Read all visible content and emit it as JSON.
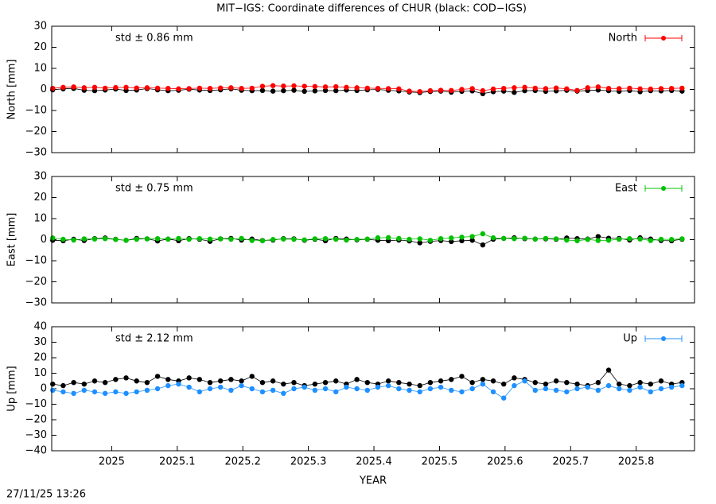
{
  "title": "MIT−IGS: Coordinate differences of CHUR (black: COD−IGS)",
  "footer": "27/11/25 13:26",
  "chart_data": [
    {
      "type": "scatter",
      "ylabel": "North [mm]",
      "annotation": "std ± 0.86 mm",
      "legend": "upper right",
      "x": [
        2024.91,
        2024.926,
        2024.942,
        2024.958,
        2024.974,
        2024.99,
        2025.006,
        2025.022,
        2025.038,
        2025.054,
        2025.07,
        2025.086,
        2025.102,
        2025.118,
        2025.134,
        2025.15,
        2025.166,
        2025.182,
        2025.198,
        2025.214,
        2025.23,
        2025.246,
        2025.262,
        2025.278,
        2025.294,
        2025.31,
        2025.326,
        2025.342,
        2025.358,
        2025.374,
        2025.39,
        2025.406,
        2025.422,
        2025.438,
        2025.454,
        2025.47,
        2025.486,
        2025.502,
        2025.518,
        2025.534,
        2025.55,
        2025.566,
        2025.582,
        2025.598,
        2025.614,
        2025.63,
        2025.646,
        2025.662,
        2025.678,
        2025.694,
        2025.71,
        2025.726,
        2025.742,
        2025.758,
        2025.774,
        2025.79,
        2025.806,
        2025.822,
        2025.838,
        2025.854,
        2025.87
      ],
      "xlim": [
        2024.9085,
        2025.889
      ],
      "xticks": [
        2025,
        2025.1,
        2025.2,
        2025.3,
        2025.4,
        2025.5,
        2025.6,
        2025.7,
        2025.8
      ],
      "ylim": [
        -30,
        30
      ],
      "yticks": [
        {
          "value": -30,
          "label": "−30"
        },
        {
          "value": -20,
          "label": "−20"
        },
        {
          "value": -10,
          "label": "−10"
        },
        0,
        10,
        20,
        30
      ],
      "series": [
        {
          "color": "#000000",
          "values": [
            -0.2,
            0.3,
            0.5,
            -0.4,
            -0.6,
            -0.3,
            0.2,
            -0.5,
            -0.3,
            0.4,
            -0.2,
            -0.6,
            -0.4,
            0.1,
            -0.3,
            -0.5,
            -0.2,
            0.3,
            -0.4,
            -0.6,
            -0.5,
            -0.8,
            -0.6,
            -0.4,
            -0.9,
            -0.7,
            -0.5,
            -0.6,
            -0.3,
            -0.5,
            -0.2,
            0,
            -0.4,
            -0.7,
            -1.2,
            -1.5,
            -1,
            -0.8,
            -1.3,
            -0.9,
            -0.7,
            -2,
            -1.1,
            -0.8,
            -1.4,
            -0.6,
            -0.5,
            -0.9,
            -0.7,
            -0.4,
            -0.8,
            -0.5,
            -0.3,
            -0.6,
            -0.9,
            -0.5,
            -1.1,
            -0.6,
            -0.7,
            -0.5,
            -0.8
          ]
        },
        {
          "name": "North",
          "color": "#ff0000",
          "values": [
            0.5,
            1,
            1.2,
            0.8,
            1,
            0.6,
            0.9,
            1,
            0.7,
            0.8,
            0.6,
            0.5,
            0.3,
            0.4,
            0.6,
            0.5,
            0.7,
            0.8,
            0.5,
            0.6,
            1.5,
            1.8,
            1.6,
            1.7,
            1.5,
            1.4,
            1.2,
            1.3,
            1,
            0.8,
            0.6,
            0.5,
            0.4,
            0.3,
            -0.8,
            -1,
            -0.6,
            -0.4,
            -0.5,
            0,
            0.4,
            -0.6,
            0.2,
            0.5,
            0.8,
            1,
            0.6,
            0.4,
            0.7,
            0.3,
            -0.5,
            0.8,
            1.2,
            0.5,
            0.4,
            0.6,
            0.3,
            0.2,
            0.4,
            0.5,
            0.6
          ]
        }
      ]
    },
    {
      "type": "scatter",
      "ylabel": "East [mm]",
      "annotation": "std ± 0.75 mm",
      "legend": "upper right",
      "x": [
        2024.91,
        2024.926,
        2024.942,
        2024.958,
        2024.974,
        2024.99,
        2025.006,
        2025.022,
        2025.038,
        2025.054,
        2025.07,
        2025.086,
        2025.102,
        2025.118,
        2025.134,
        2025.15,
        2025.166,
        2025.182,
        2025.198,
        2025.214,
        2025.23,
        2025.246,
        2025.262,
        2025.278,
        2025.294,
        2025.31,
        2025.326,
        2025.342,
        2025.358,
        2025.374,
        2025.39,
        2025.406,
        2025.422,
        2025.438,
        2025.454,
        2025.47,
        2025.486,
        2025.502,
        2025.518,
        2025.534,
        2025.55,
        2025.566,
        2025.582,
        2025.598,
        2025.614,
        2025.63,
        2025.646,
        2025.662,
        2025.678,
        2025.694,
        2025.71,
        2025.726,
        2025.742,
        2025.758,
        2025.774,
        2025.79,
        2025.806,
        2025.822,
        2025.838,
        2025.854,
        2025.87
      ],
      "xlim": [
        2024.9085,
        2025.889
      ],
      "xticks": [
        2025,
        2025.1,
        2025.2,
        2025.3,
        2025.4,
        2025.5,
        2025.6,
        2025.7,
        2025.8
      ],
      "ylim": [
        -30,
        30
      ],
      "yticks": [
        {
          "value": -30,
          "label": "−30"
        },
        {
          "value": -20,
          "label": "−20"
        },
        {
          "value": -10,
          "label": "−10"
        },
        0,
        10,
        20,
        30
      ],
      "series": [
        {
          "color": "#000000",
          "values": [
            -0.3,
            -0.5,
            0.2,
            -0.4,
            0.5,
            0.8,
            0.2,
            -0.3,
            0.6,
            0.4,
            -0.6,
            0.3,
            -0.5,
            0.5,
            0.2,
            -0.8,
            0.4,
            0.6,
            -0.2,
            0.3,
            -0.4,
            -0.2,
            0.5,
            0.4,
            -0.3,
            0.2,
            -0.5,
            0.6,
            0.3,
            -0.1,
            0.2,
            -0.3,
            -0.5,
            -0.2,
            -0.6,
            -1.5,
            -0.8,
            -0.4,
            -0.9,
            -0.5,
            -0.3,
            -2.5,
            0.2,
            0.6,
            0.9,
            0.5,
            0.3,
            0.4,
            0.2,
            0.8,
            0.5,
            0.3,
            1.5,
            0.7,
            0.6,
            -0.2,
            0.9,
            0.3,
            -0.4,
            -0.5,
            0.2
          ]
        },
        {
          "name": "East",
          "color": "#00c000",
          "values": [
            0.8,
            0.2,
            -0.2,
            0.4,
            0.3,
            0.5,
            0.1,
            -0.3,
            0.2,
            0.4,
            0.5,
            0.3,
            0.6,
            0.2,
            0.5,
            0.3,
            0.4,
            0.2,
            0.6,
            -0.4,
            -0.5,
            0.1,
            0.3,
            0.2,
            -0.1,
            0.4,
            0.5,
            0.2,
            -0.2,
            0.1,
            0.3,
            0.9,
            1,
            0.6,
            0.2,
            0.4,
            -0.3,
            0.5,
            0.8,
            1.2,
            1.5,
            2.8,
            0.9,
            0.6,
            0.5,
            0.7,
            0.3,
            0.6,
            0.4,
            -0.2,
            -0.5,
            0.1,
            -0.4,
            -0.3,
            0.2,
            0.5,
            0.3,
            -0.4,
            0.2,
            0.1,
            0.4
          ]
        }
      ]
    },
    {
      "type": "scatter",
      "ylabel": "Up [mm]",
      "xlabel": "YEAR",
      "annotation": "std ± 2.12 mm",
      "legend": "upper right",
      "x": [
        2024.91,
        2024.926,
        2024.942,
        2024.958,
        2024.974,
        2024.99,
        2025.006,
        2025.022,
        2025.038,
        2025.054,
        2025.07,
        2025.086,
        2025.102,
        2025.118,
        2025.134,
        2025.15,
        2025.166,
        2025.182,
        2025.198,
        2025.214,
        2025.23,
        2025.246,
        2025.262,
        2025.278,
        2025.294,
        2025.31,
        2025.326,
        2025.342,
        2025.358,
        2025.374,
        2025.39,
        2025.406,
        2025.422,
        2025.438,
        2025.454,
        2025.47,
        2025.486,
        2025.502,
        2025.518,
        2025.534,
        2025.55,
        2025.566,
        2025.582,
        2025.598,
        2025.614,
        2025.63,
        2025.646,
        2025.662,
        2025.678,
        2025.694,
        2025.71,
        2025.726,
        2025.742,
        2025.758,
        2025.774,
        2025.79,
        2025.806,
        2025.822,
        2025.838,
        2025.854,
        2025.87
      ],
      "xlim": [
        2024.9085,
        2025.889
      ],
      "xticks": [
        2025,
        2025.1,
        2025.2,
        2025.3,
        2025.4,
        2025.5,
        2025.6,
        2025.7,
        2025.8
      ],
      "ylim": [
        -40,
        40
      ],
      "yticks": [
        {
          "value": -40,
          "label": "−40"
        },
        {
          "value": -30,
          "label": "−30"
        },
        {
          "value": -20,
          "label": "−20"
        },
        {
          "value": -10,
          "label": "−10"
        },
        0,
        10,
        20,
        30,
        40
      ],
      "series": [
        {
          "color": "#000000",
          "values": [
            3,
            2,
            4,
            3,
            5,
            4,
            6,
            7,
            5,
            4,
            8,
            6,
            5,
            7,
            6,
            4,
            5,
            6,
            5,
            8,
            4,
            5,
            3,
            4,
            2,
            3,
            4,
            5,
            3,
            6,
            4,
            3,
            5,
            4,
            3,
            2,
            4,
            5,
            6,
            8,
            4,
            6,
            5,
            3,
            7,
            6,
            4,
            3,
            5,
            4,
            3,
            2,
            4,
            12,
            3,
            2,
            4,
            3,
            5,
            3,
            4
          ]
        },
        {
          "name": "Up",
          "color": "#1e90ff",
          "values": [
            -1,
            -2,
            -3,
            -1,
            -2,
            -3,
            -2,
            -3,
            -2,
            -1,
            0,
            2,
            3,
            1,
            -2,
            0,
            1,
            -1,
            2,
            0,
            -2,
            -1,
            -3,
            0,
            1,
            -1,
            0,
            -2,
            1,
            0,
            -1,
            1,
            2,
            0,
            -1,
            -2,
            0,
            1,
            -1,
            -2,
            0,
            3,
            -2,
            -6,
            2,
            5,
            -1,
            0,
            -1,
            -2,
            0,
            1,
            -1,
            2,
            0,
            -1,
            1,
            -2,
            0,
            1,
            2
          ]
        }
      ]
    }
  ]
}
